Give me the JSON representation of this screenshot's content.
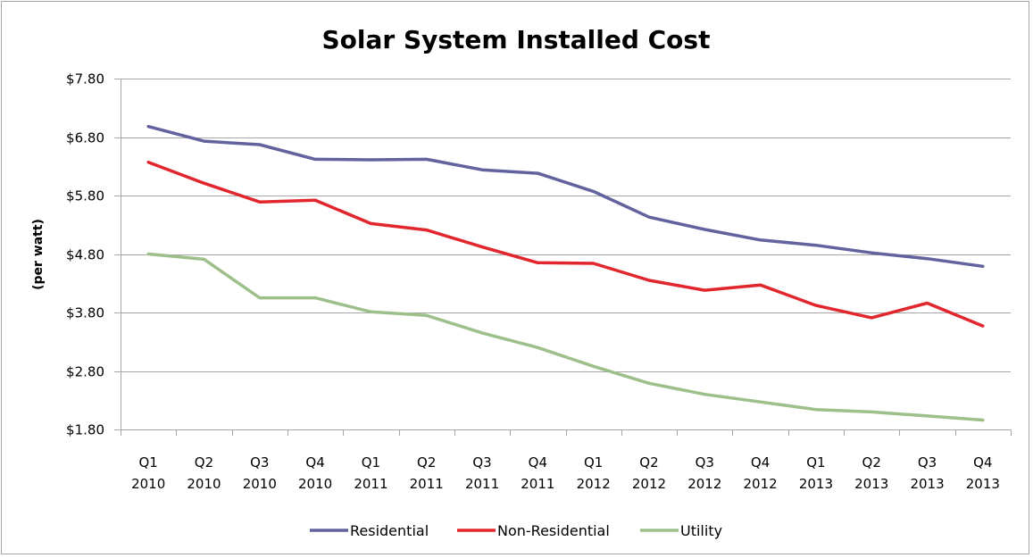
{
  "chart_data": {
    "type": "line",
    "title": "Solar System Installed Cost",
    "xlabel": "",
    "ylabel": "(per watt)",
    "ylim": [
      1.8,
      7.8
    ],
    "yticks": [
      1.8,
      2.8,
      3.8,
      4.8,
      5.8,
      6.8,
      7.8
    ],
    "ytick_labels": [
      "$1.80",
      "$2.80",
      "$3.80",
      "$4.80",
      "$5.80",
      "$6.80",
      "$7.80"
    ],
    "grid": true,
    "legend_position": "bottom",
    "categories": [
      {
        "q": "Q1",
        "year": "2010"
      },
      {
        "q": "Q2",
        "year": "2010"
      },
      {
        "q": "Q3",
        "year": "2010"
      },
      {
        "q": "Q4",
        "year": "2010"
      },
      {
        "q": "Q1",
        "year": "2011"
      },
      {
        "q": "Q2",
        "year": "2011"
      },
      {
        "q": "Q3",
        "year": "2011"
      },
      {
        "q": "Q4",
        "year": "2011"
      },
      {
        "q": "Q1",
        "year": "2012"
      },
      {
        "q": "Q2",
        "year": "2012"
      },
      {
        "q": "Q3",
        "year": "2012"
      },
      {
        "q": "Q4",
        "year": "2012"
      },
      {
        "q": "Q1",
        "year": "2013"
      },
      {
        "q": "Q2",
        "year": "2013"
      },
      {
        "q": "Q3",
        "year": "2013"
      },
      {
        "q": "Q4",
        "year": "2013"
      }
    ],
    "series": [
      {
        "name": "Residential",
        "color": "#62629E",
        "values": [
          6.98,
          6.73,
          6.67,
          6.42,
          6.41,
          6.42,
          6.24,
          6.18,
          5.87,
          5.43,
          5.22,
          5.04,
          4.95,
          4.82,
          4.72,
          4.59
        ]
      },
      {
        "name": "Non-Residential",
        "color": "#E2262D",
        "values": [
          6.37,
          6.01,
          5.69,
          5.72,
          5.32,
          5.21,
          4.92,
          4.65,
          4.64,
          4.35,
          4.18,
          4.27,
          3.92,
          3.71,
          3.96,
          3.57
        ]
      },
      {
        "name": "Utility",
        "color": "#9DC08B",
        "values": [
          4.8,
          4.71,
          4.05,
          4.05,
          3.81,
          3.75,
          3.45,
          3.2,
          2.88,
          2.59,
          2.4,
          2.27,
          2.14,
          2.1,
          2.03,
          1.96
        ]
      }
    ],
    "axis_color": "#a6a6a6",
    "grid_color": "#a6a6a6"
  }
}
